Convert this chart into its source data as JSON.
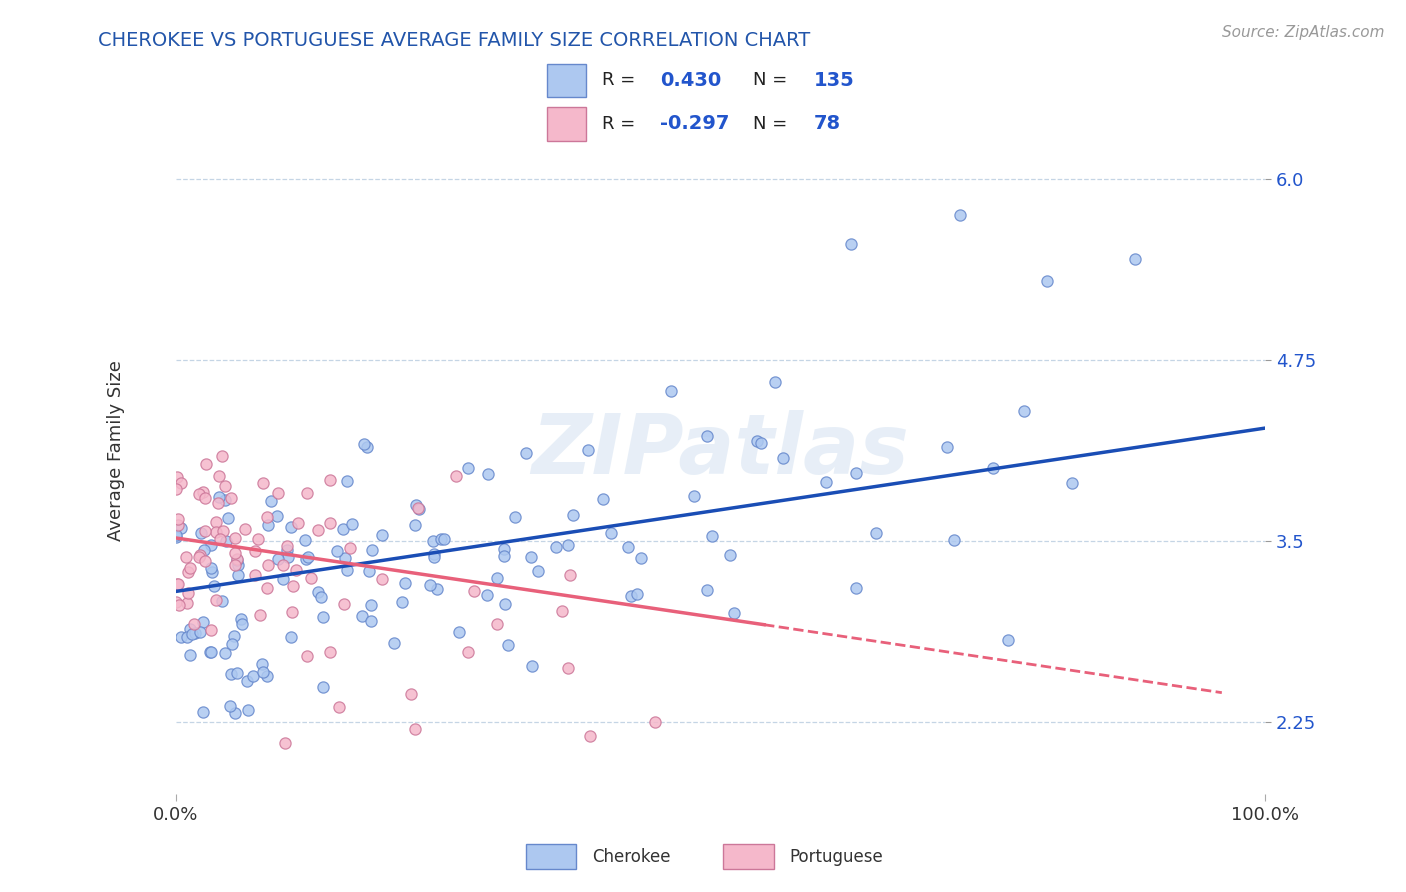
{
  "title": "CHEROKEE VS PORTUGUESE AVERAGE FAMILY SIZE CORRELATION CHART",
  "source": "Source: ZipAtlas.com",
  "ylabel": "Average Family Size",
  "watermark": "ZIPatlas",
  "cherokee_color": "#adc8f0",
  "cherokee_edge": "#6688cc",
  "portuguese_color": "#f5b8cb",
  "portuguese_edge": "#cc7799",
  "cherokee_line_color": "#1a4db5",
  "portuguese_line_color": "#e8607a",
  "cherokee_R": "0.430",
  "cherokee_N": "135",
  "portuguese_R": "-0.297",
  "portuguese_N": "78",
  "title_color": "#2255aa",
  "stat_color": "#2255cc",
  "label_color": "#333333",
  "grid_color": "#c5d5e5",
  "background_color": "#ffffff",
  "xlim": [
    0.0,
    1.0
  ],
  "ylim": [
    1.75,
    6.5
  ],
  "yticks": [
    2.25,
    3.5,
    4.75,
    6.0
  ],
  "xtick_labels": [
    "0.0%",
    "100.0%"
  ],
  "title_fontsize": 14,
  "source_fontsize": 11,
  "tick_fontsize": 13,
  "ylabel_fontsize": 13
}
